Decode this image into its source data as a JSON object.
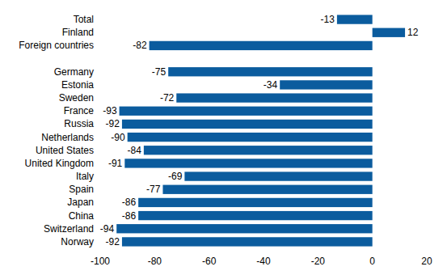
{
  "chart_data": {
    "type": "bar",
    "orientation": "horizontal",
    "categories": [
      "Total",
      "Finland",
      "Foreign countries",
      null,
      "Germany",
      "Estonia",
      "Sweden",
      "France",
      "Russia",
      "Netherlands",
      "United States",
      "United Kingdom",
      "Italy",
      "Spain",
      "Japan",
      "China",
      "Switzerland",
      "Norway"
    ],
    "values": [
      -13,
      12,
      -82,
      null,
      -75,
      -34,
      -72,
      -93,
      -92,
      -90,
      -84,
      -91,
      -69,
      -77,
      -86,
      -86,
      -94,
      -92
    ],
    "color": "#0b5c9e",
    "xlim": [
      -100,
      20
    ],
    "xticks": [
      -100,
      -80,
      -60,
      -40,
      -20,
      0,
      20
    ],
    "grid": false,
    "data_labels": true
  }
}
